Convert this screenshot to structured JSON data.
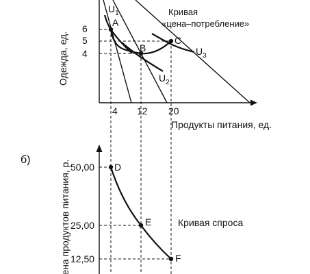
{
  "panel_b_label": "б)",
  "top": {
    "y_axis_label": "Одежда, ед.",
    "x_axis_label": "Продукты питания, ед.",
    "y_ticks": [
      "6",
      "5",
      "4"
    ],
    "x_ticks": [
      "4",
      "12",
      "20"
    ],
    "points": [
      {
        "label": "A",
        "food": 4,
        "clothing": 6
      },
      {
        "label": "B",
        "food": 12,
        "clothing": 4
      },
      {
        "label": "C",
        "food": 20,
        "clothing": 5
      }
    ],
    "curves": {
      "u1": "U",
      "u1_sub": "1",
      "u2": "U",
      "u2_sub": "2",
      "u3": "U",
      "u3_sub": "3"
    },
    "pcc_label_line1": "Кривая",
    "pcc_label_line2": "«цена–потребление»"
  },
  "bottom": {
    "y_axis_label": "Цена продуктов питания, р.",
    "y_ticks": [
      "50,00",
      "25,00",
      "12,50"
    ],
    "points": [
      {
        "label": "D",
        "food": 4,
        "price": 50.0
      },
      {
        "label": "E",
        "food": 12,
        "price": 25.0
      },
      {
        "label": "F",
        "food": 20,
        "price": 12.5
      }
    ],
    "demand_label": "Кривая спроса"
  }
}
